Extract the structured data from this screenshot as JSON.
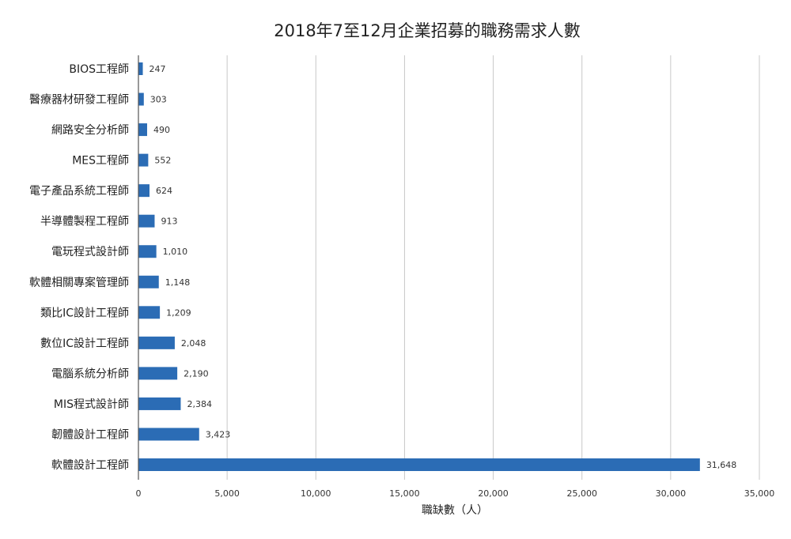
{
  "chart_data": {
    "type": "bar",
    "orientation": "horizontal",
    "title": "2018年7至12月企業招募的職務需求人數",
    "xlabel": "職缺數（人）",
    "ylabel": "",
    "xlim": [
      0,
      35000
    ],
    "x_ticks": [
      0,
      5000,
      10000,
      15000,
      20000,
      25000,
      30000,
      35000
    ],
    "x_tick_labels": [
      "0",
      "5,000",
      "10,000",
      "15,000",
      "20,000",
      "25,000",
      "30,000",
      "35,000"
    ],
    "grid": "vertical",
    "bar_color": "#2B6CB5",
    "categories": [
      "BIOS工程師",
      "醫療器材研發工程師",
      "網路安全分析師",
      "MES工程師",
      "電子產品系統工程師",
      "半導體製程工程師",
      "電玩程式設計師",
      "軟體相關專案管理師",
      "類比IC設計工程師",
      "數位IC設計工程師",
      "電腦系統分析師",
      "MIS程式設計師",
      "韌體設計工程師",
      "軟體設計工程師"
    ],
    "values": [
      247,
      303,
      490,
      552,
      624,
      913,
      1010,
      1148,
      1209,
      2048,
      2190,
      2384,
      3423,
      31648
    ],
    "value_labels": [
      "247",
      "303",
      "490",
      "552",
      "624",
      "913",
      "1,010",
      "1,148",
      "1,209",
      "2,048",
      "2,190",
      "2,384",
      "3,423",
      "31,648"
    ]
  }
}
